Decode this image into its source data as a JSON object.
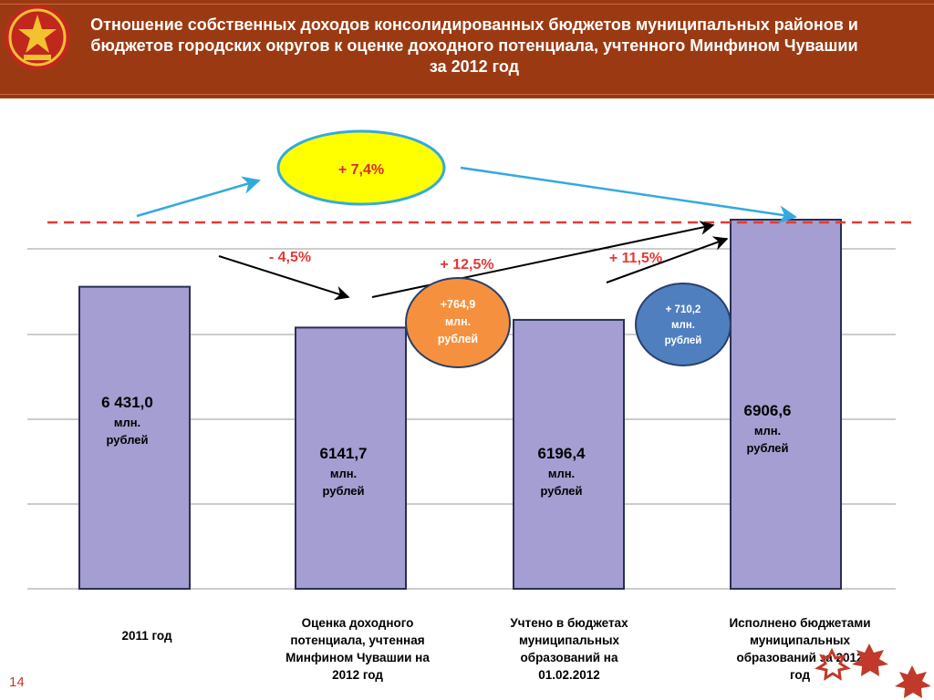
{
  "header": {
    "title": "Отношение собственных доходов консолидированных бюджетов муниципальных районов и бюджетов городских округов к оценке доходного потенциала, учтенного Минфином Чувашии за 2012 год"
  },
  "page_number": "14",
  "colors": {
    "header_bg": "#9b3a12",
    "bar_fill": "#a49ed2",
    "bar_stroke": "#2a2f54",
    "dashed_line": "#e53935",
    "orange_bubble": "#f5913e",
    "blue_bubble": "#4f7fbf",
    "yellow_ellipse": "#ffff00",
    "ellipse_border": "#33aadd"
  },
  "icons": [
    "chuvash-emblem-icon",
    "decorative-stars-icon"
  ],
  "chart_data": {
    "type": "bar",
    "unit": "млн. рублей",
    "categories": [
      "2011 год",
      "Оценка доходного потенциала, учтенная Минфином Чувашии на 2012 год",
      "Учтено в бюджетах муниципальных образований на 01.02.2012",
      "Исполнено бюджетами муниципальных образований за 2012 год"
    ],
    "category_lines": [
      [
        "2011 год"
      ],
      [
        "Оценка доходного",
        "потенциала, учтенная",
        "Минфином Чувашии на",
        "2012 год"
      ],
      [
        "Учтено в бюджетах",
        "муниципальных",
        "образований на",
        "01.02.2012"
      ],
      [
        "Исполнено бюджетами",
        "муниципальных",
        "образований за 2012",
        "год"
      ]
    ],
    "values": [
      6431.0,
      6141.7,
      6196.4,
      6906.6
    ],
    "value_labels": [
      "6 431,0",
      "6141,7",
      "6196,4",
      "6906,6"
    ],
    "unit_lines": [
      "млн.",
      "рублей"
    ],
    "grid": true,
    "annotations": {
      "top_change": "+ 7,4%",
      "change_1": "- 4,5%",
      "change_2": "+ 12,5%",
      "change_3": "+ 11,5%",
      "orange_bubble": [
        "+764,9",
        "млн.",
        "рублей"
      ],
      "blue_bubble": [
        "+ 710,2",
        "млн.",
        "рублей"
      ]
    }
  }
}
